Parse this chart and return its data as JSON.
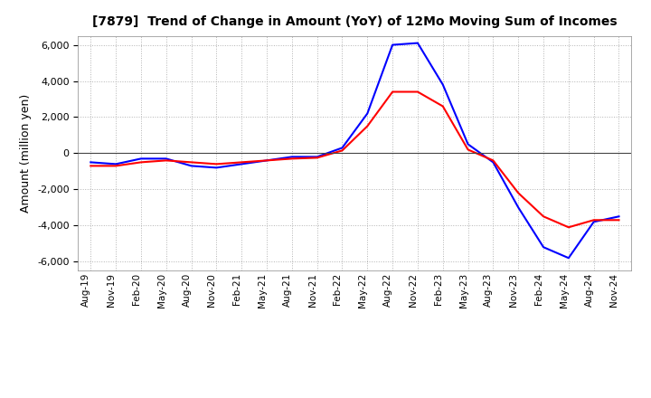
{
  "title": "[7879]  Trend of Change in Amount (YoY) of 12Mo Moving Sum of Incomes",
  "ylabel": "Amount (million yen)",
  "ylim": [
    -6500,
    6500
  ],
  "yticks": [
    -6000,
    -4000,
    -2000,
    0,
    2000,
    4000,
    6000
  ],
  "background_color": "#ffffff",
  "grid_color": "#aaaaaa",
  "ordinary_income_color": "#0000ff",
  "net_income_color": "#ff0000",
  "x_labels": [
    "Aug-19",
    "Nov-19",
    "Feb-20",
    "May-20",
    "Aug-20",
    "Nov-20",
    "Feb-21",
    "May-21",
    "Aug-21",
    "Nov-21",
    "Feb-22",
    "May-22",
    "Aug-22",
    "Nov-22",
    "Feb-23",
    "May-23",
    "Aug-23",
    "Nov-23",
    "Feb-24",
    "May-24",
    "Aug-24",
    "Nov-24"
  ],
  "ordinary_income": [
    -500,
    -600,
    -300,
    -300,
    -700,
    -800,
    -600,
    -400,
    -200,
    -200,
    300,
    2200,
    6000,
    6100,
    3800,
    500,
    -500,
    -3000,
    -5200,
    -5800,
    -3800,
    -3500
  ],
  "net_income": [
    -700,
    -700,
    -500,
    -400,
    -500,
    -600,
    -500,
    -400,
    -300,
    -250,
    150,
    1500,
    3400,
    3400,
    2600,
    200,
    -400,
    -2200,
    -3500,
    -4100,
    -3700,
    -3700
  ]
}
